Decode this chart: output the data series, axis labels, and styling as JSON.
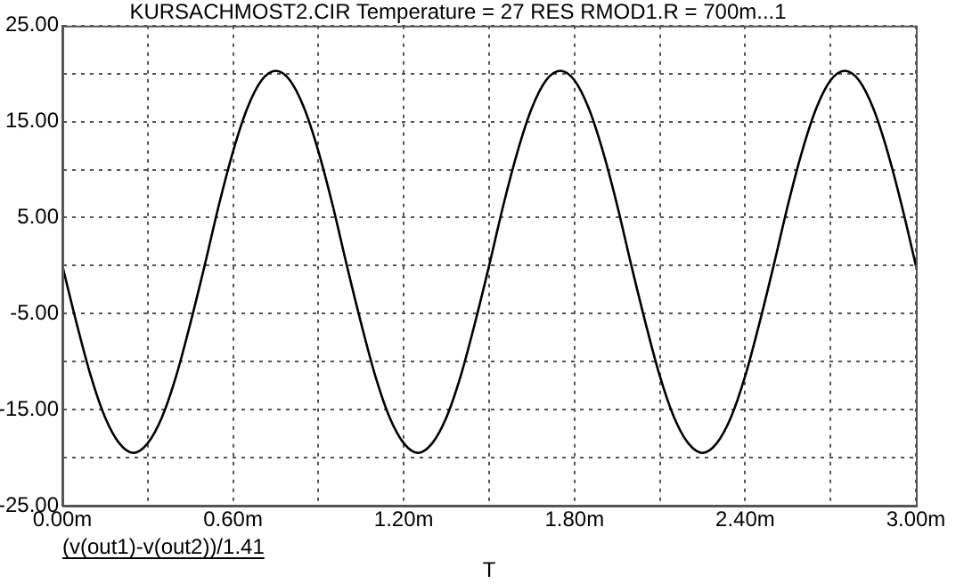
{
  "chart_data": {
    "type": "line",
    "title": "KURSACHMOST2.CIR Temperature = 27 RES RMOD1.R = 700m...1",
    "xlabel": "T",
    "x": [
      0,
      0.05,
      0.1,
      0.15,
      0.2,
      0.25,
      0.3,
      0.35,
      0.4,
      0.45,
      0.5,
      0.55,
      0.6,
      0.65,
      0.7,
      0.75,
      0.8,
      0.85,
      0.9,
      0.95,
      1,
      1.05,
      1.1,
      1.15,
      1.2,
      1.25,
      1.3,
      1.35,
      1.4,
      1.45,
      1.5,
      1.55,
      1.6,
      1.65,
      1.7,
      1.75,
      1.8,
      1.85,
      1.9,
      1.95,
      2,
      2.05,
      2.1,
      2.15,
      2.2,
      2.25,
      2.3,
      2.35,
      2.4,
      2.45,
      2.5,
      2.55,
      2.6,
      2.65,
      2.7,
      2.75,
      2.8,
      2.85,
      2.9,
      2.95,
      3
    ],
    "series": [
      {
        "name": "(v(out1)-v(out2))/1.41",
        "color": "#000000",
        "values": [
          0,
          -6.0,
          -11.5,
          -15.8,
          -18.5,
          -19.5,
          -18.5,
          -15.8,
          -11.5,
          -6.0,
          0,
          6.3,
          11.9,
          16.4,
          19.3,
          20.3,
          19.3,
          16.4,
          11.9,
          6.3,
          0,
          -6.0,
          -11.5,
          -15.8,
          -18.5,
          -19.5,
          -18.5,
          -15.8,
          -11.5,
          -6.0,
          0,
          6.3,
          11.9,
          16.4,
          19.3,
          20.3,
          19.3,
          16.4,
          11.9,
          6.3,
          0,
          -6.0,
          -11.5,
          -15.8,
          -18.5,
          -19.5,
          -18.5,
          -15.8,
          -11.5,
          -6.0,
          0,
          6.3,
          11.9,
          16.4,
          19.3,
          20.3,
          19.3,
          16.4,
          11.9,
          6.3,
          0
        ]
      }
    ],
    "xlim": [
      0,
      3
    ],
    "xticks": [
      {
        "value": 0,
        "label": "0.00m"
      },
      {
        "value": 0.3,
        "label": null
      },
      {
        "value": 0.6,
        "label": "0.60m"
      },
      {
        "value": 0.9,
        "label": null
      },
      {
        "value": 1.2,
        "label": "1.20m"
      },
      {
        "value": 1.5,
        "label": null
      },
      {
        "value": 1.8,
        "label": "1.80m"
      },
      {
        "value": 2.1,
        "label": null
      },
      {
        "value": 2.4,
        "label": "2.40m"
      },
      {
        "value": 2.7,
        "label": null
      },
      {
        "value": 3,
        "label": "3.00m"
      }
    ],
    "ylim": [
      -25,
      25
    ],
    "yticks": [
      {
        "value": -25,
        "label": "-25.00"
      },
      {
        "value": -20,
        "label": null
      },
      {
        "value": -15,
        "label": "-15.00"
      },
      {
        "value": -10,
        "label": null
      },
      {
        "value": -5,
        "label": "-5.00"
      },
      {
        "value": 0,
        "label": null
      },
      {
        "value": 5,
        "label": "5.00"
      },
      {
        "value": 10,
        "label": null
      },
      {
        "value": 15,
        "label": "15.00"
      },
      {
        "value": 20,
        "label": null
      },
      {
        "value": 25,
        "label": "25.00"
      }
    ],
    "grid": true,
    "legend": "bottom left",
    "marker": "none",
    "line_style": "solid"
  }
}
